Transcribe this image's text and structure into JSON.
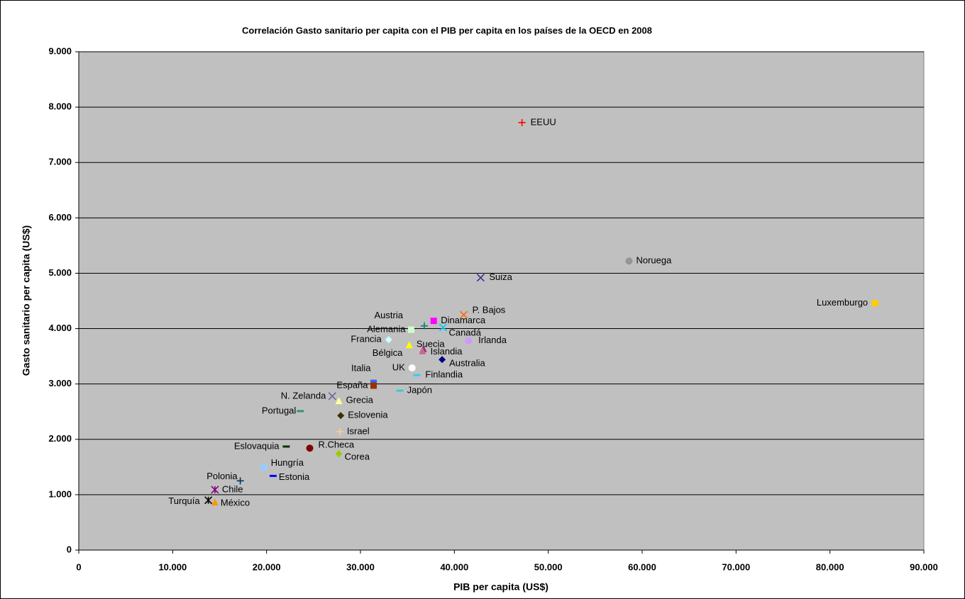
{
  "chart_data": {
    "type": "scatter",
    "title": "Correlación Gasto sanitario per capita con el PIB per capita en los países de la OECD en 2008",
    "x_label": "PIB per capita (US$)",
    "y_label": "Gasto sanitario per capita (US$)",
    "xlim": [
      0,
      90000
    ],
    "ylim": [
      0,
      9000
    ],
    "xticks": [
      0,
      {
        "value": 10000,
        "label": "10.000"
      },
      {
        "value": 20000,
        "label": "20.000"
      },
      {
        "value": 30000,
        "label": "30.000"
      },
      {
        "value": 40000,
        "label": "40.000"
      },
      {
        "value": 50000,
        "label": "50.000"
      },
      {
        "value": 60000,
        "label": "60.000"
      },
      {
        "value": 70000,
        "label": "70.000"
      },
      {
        "value": 80000,
        "label": "80.000"
      },
      {
        "value": 90000,
        "label": "90.000"
      }
    ],
    "yticks": [
      0,
      {
        "value": 1000,
        "label": "1.000"
      },
      {
        "value": 2000,
        "label": "2.000"
      },
      {
        "value": 3000,
        "label": "3.000"
      },
      {
        "value": 4000,
        "label": "4.000"
      },
      {
        "value": 5000,
        "label": "5.000"
      },
      {
        "value": 6000,
        "label": "6.000"
      },
      {
        "value": 7000,
        "label": "7.000"
      },
      {
        "value": 8000,
        "label": "8.000"
      },
      {
        "value": 9000,
        "label": "9.000"
      }
    ],
    "grid": true,
    "series": [
      {
        "name": "EEUU",
        "color": "#ff0000",
        "marker": "plus",
        "x": [
          47200
        ],
        "values": [
          7720
        ]
      },
      {
        "name": "Noruega",
        "color": "#969696",
        "marker": "circle",
        "x": [
          58600
        ],
        "values": [
          5220
        ]
      },
      {
        "name": "Suiza",
        "color": "#333399",
        "marker": "x",
        "x": [
          42800
        ],
        "values": [
          4920
        ]
      },
      {
        "name": "Luxemburgo",
        "color": "#ffcc00",
        "marker": "square",
        "x": [
          84800
        ],
        "values": [
          4460
        ]
      },
      {
        "name": "P. Bajos",
        "color": "#ff6600",
        "marker": "x",
        "x": [
          41000
        ],
        "values": [
          4250
        ]
      },
      {
        "name": "Dinamarca",
        "color": "#ff00ff",
        "marker": "square",
        "x": [
          37800
        ],
        "values": [
          4140
        ]
      },
      {
        "name": "Austria",
        "color": "#008080",
        "marker": "plus",
        "x": [
          36800
        ],
        "values": [
          4050
        ]
      },
      {
        "name": "Canadá",
        "color": "#00ccff",
        "marker": "x",
        "x": [
          38800
        ],
        "values": [
          4020
        ]
      },
      {
        "name": "Alemania",
        "color": "#ccffcc",
        "marker": "square",
        "x": [
          35400
        ],
        "values": [
          3980
        ]
      },
      {
        "name": "Francia",
        "color": "#ccffff",
        "marker": "diamond",
        "x": [
          33000
        ],
        "values": [
          3800
        ]
      },
      {
        "name": "Irlanda",
        "color": "#cc99ff",
        "marker": "circle",
        "x": [
          41500
        ],
        "values": [
          3780
        ]
      },
      {
        "name": "Suecia",
        "color": "#ffff00",
        "marker": "triangle",
        "x": [
          35200
        ],
        "values": [
          3710
        ]
      },
      {
        "name": "Islandia",
        "color": "#993366",
        "marker": "triangle",
        "x": [
          36700
        ],
        "values": [
          3640
        ]
      },
      {
        "name": "Bélgica",
        "color": "#cc6699",
        "marker": "triangle",
        "x": [
          36600
        ],
        "values": [
          3600
        ]
      },
      {
        "name": "Australia",
        "color": "#000080",
        "marker": "diamond",
        "x": [
          38700
        ],
        "values": [
          3440
        ]
      },
      {
        "name": "UK",
        "color": "#ffffff",
        "marker": "circle",
        "x": [
          35500
        ],
        "values": [
          3290
        ]
      },
      {
        "name": "Finlandia",
        "color": "#33ccff",
        "marker": "dash",
        "x": [
          36000
        ],
        "values": [
          3160
        ]
      },
      {
        "name": "Italia",
        "color": "#3366ff",
        "marker": "square",
        "x": [
          31400
        ],
        "values": [
          3020
        ]
      },
      {
        "name": "España",
        "color": "#993300",
        "marker": "square",
        "x": [
          31400
        ],
        "values": [
          2970
        ]
      },
      {
        "name": "Japón",
        "color": "#33cccc",
        "marker": "dash",
        "x": [
          34200
        ],
        "values": [
          2880
        ]
      },
      {
        "name": "N. Zelanda",
        "color": "#666699",
        "marker": "x",
        "x": [
          27000
        ],
        "values": [
          2780
        ]
      },
      {
        "name": "Grecia",
        "color": "#ffff99",
        "marker": "triangle",
        "x": [
          27700
        ],
        "values": [
          2700
        ]
      },
      {
        "name": "Portugal",
        "color": "#339966",
        "marker": "dash",
        "x": [
          23600
        ],
        "values": [
          2510
        ]
      },
      {
        "name": "Eslovenia",
        "color": "#333300",
        "marker": "diamond",
        "x": [
          27900
        ],
        "values": [
          2430
        ]
      },
      {
        "name": "Israel",
        "color": "#ffcc99",
        "marker": "plus",
        "x": [
          27800
        ],
        "values": [
          2140
        ]
      },
      {
        "name": "Eslovaquia",
        "color": "#003300",
        "marker": "dash",
        "x": [
          22100
        ],
        "values": [
          1870
        ]
      },
      {
        "name": "R.Checa",
        "color": "#800000",
        "marker": "circle",
        "x": [
          24600
        ],
        "values": [
          1840
        ]
      },
      {
        "name": "Corea",
        "color": "#99cc00",
        "marker": "diamond",
        "x": [
          27700
        ],
        "values": [
          1740
        ]
      },
      {
        "name": "Hungría",
        "color": "#99ccff",
        "marker": "square",
        "x": [
          19700
        ],
        "values": [
          1490
        ]
      },
      {
        "name": "Estonia",
        "color": "#0000ff",
        "marker": "dash",
        "x": [
          20700
        ],
        "values": [
          1340
        ]
      },
      {
        "name": "Polonia",
        "color": "#003366",
        "marker": "plus",
        "x": [
          17200
        ],
        "values": [
          1250
        ]
      },
      {
        "name": "Chile",
        "color": "#800080",
        "marker": "star",
        "x": [
          14500
        ],
        "values": [
          1090
        ]
      },
      {
        "name": "Turquía",
        "color": "#000000",
        "marker": "star",
        "x": [
          13800
        ],
        "values": [
          900
        ]
      },
      {
        "name": "México",
        "color": "#ff9900",
        "marker": "triangle",
        "x": [
          14500
        ],
        "values": [
          870
        ]
      }
    ]
  }
}
